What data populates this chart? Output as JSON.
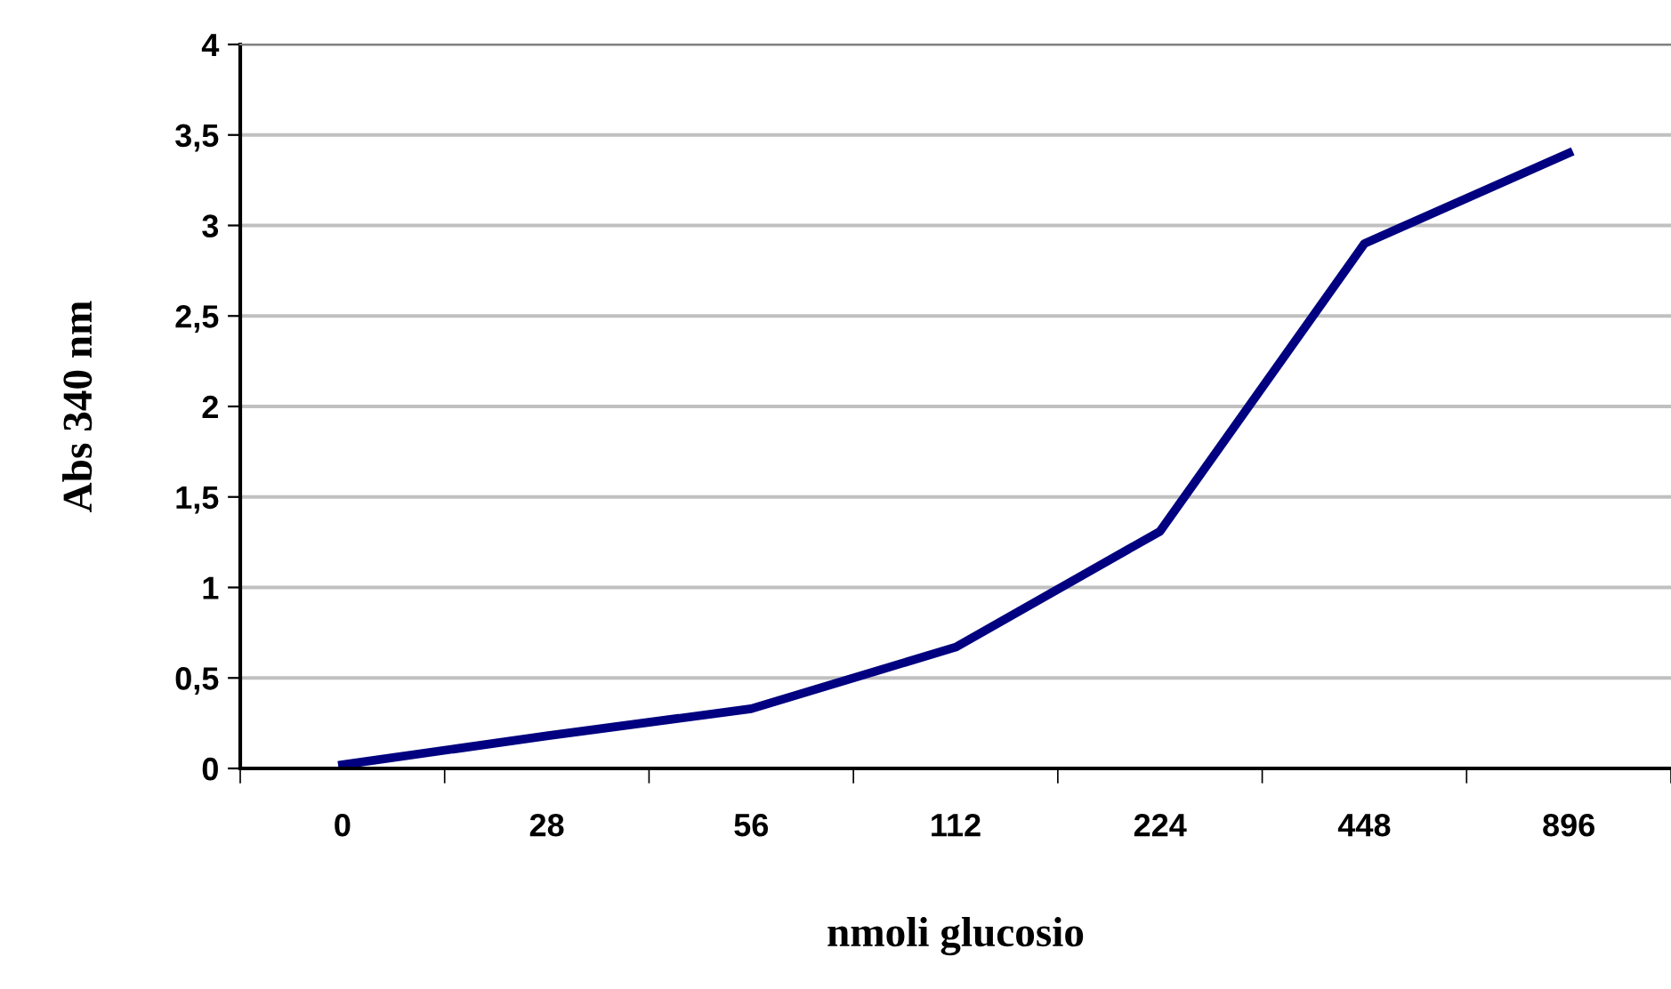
{
  "chart_data": {
    "type": "line",
    "xlabel": "nmoli glucosio",
    "ylabel": "Abs 340 nm",
    "categories": [
      "0",
      "28",
      "56",
      "112",
      "224",
      "448",
      "896"
    ],
    "series": [
      {
        "color": "#000080",
        "values": [
          0.02,
          0.18,
          0.33,
          0.67,
          1.31,
          2.9,
          3.4
        ]
      }
    ],
    "ylim": [
      0,
      4
    ],
    "yticks": [
      0,
      {
        "value": 0.5,
        "label": "0,5"
      },
      1,
      {
        "value": 1.5,
        "label": "1,5"
      },
      2,
      {
        "value": 2.5,
        "label": "2,5"
      },
      3,
      {
        "value": 3.5,
        "label": "3,5"
      },
      4
    ],
    "grid": "y",
    "legend": false,
    "marker": "none",
    "line_style": "solid"
  }
}
